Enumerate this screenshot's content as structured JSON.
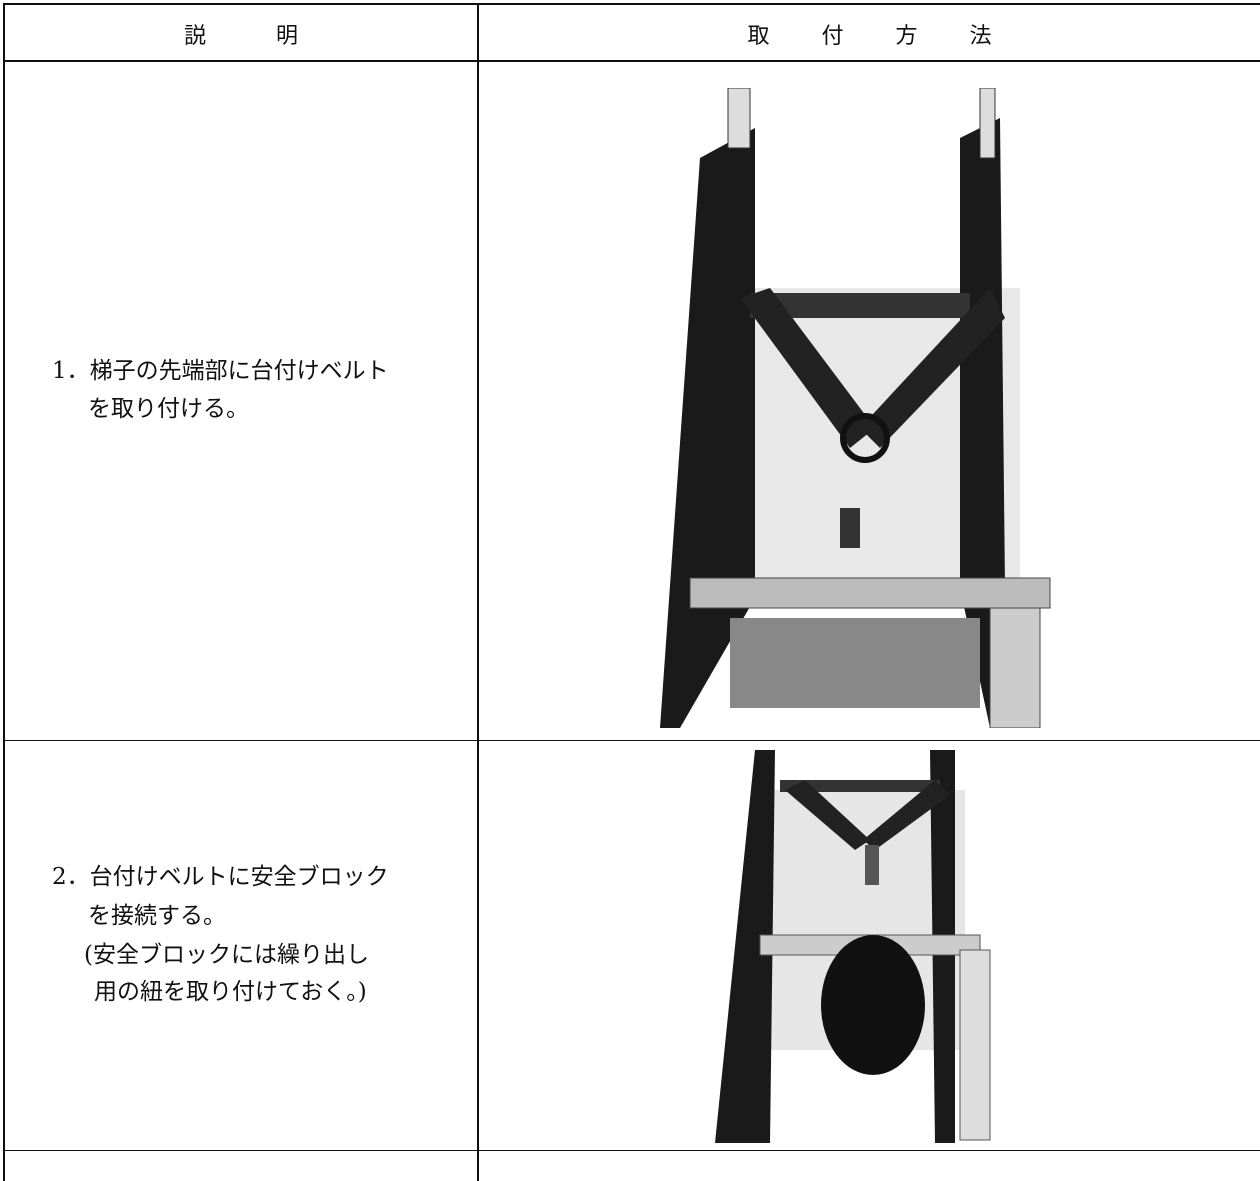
{
  "table": {
    "header": [
      "説明",
      "取付方法"
    ],
    "rows": [
      {
        "description": [
          "1．梯子の先端部に台付けベルト",
          "を取り付ける。"
        ]
      },
      {
        "description": [
          "2．台付けベルトに安全ブロック",
          "を接続する。",
          "(安全ブロックには繰り出し",
          "用の紐を取り付けておく。)"
        ]
      }
    ]
  }
}
